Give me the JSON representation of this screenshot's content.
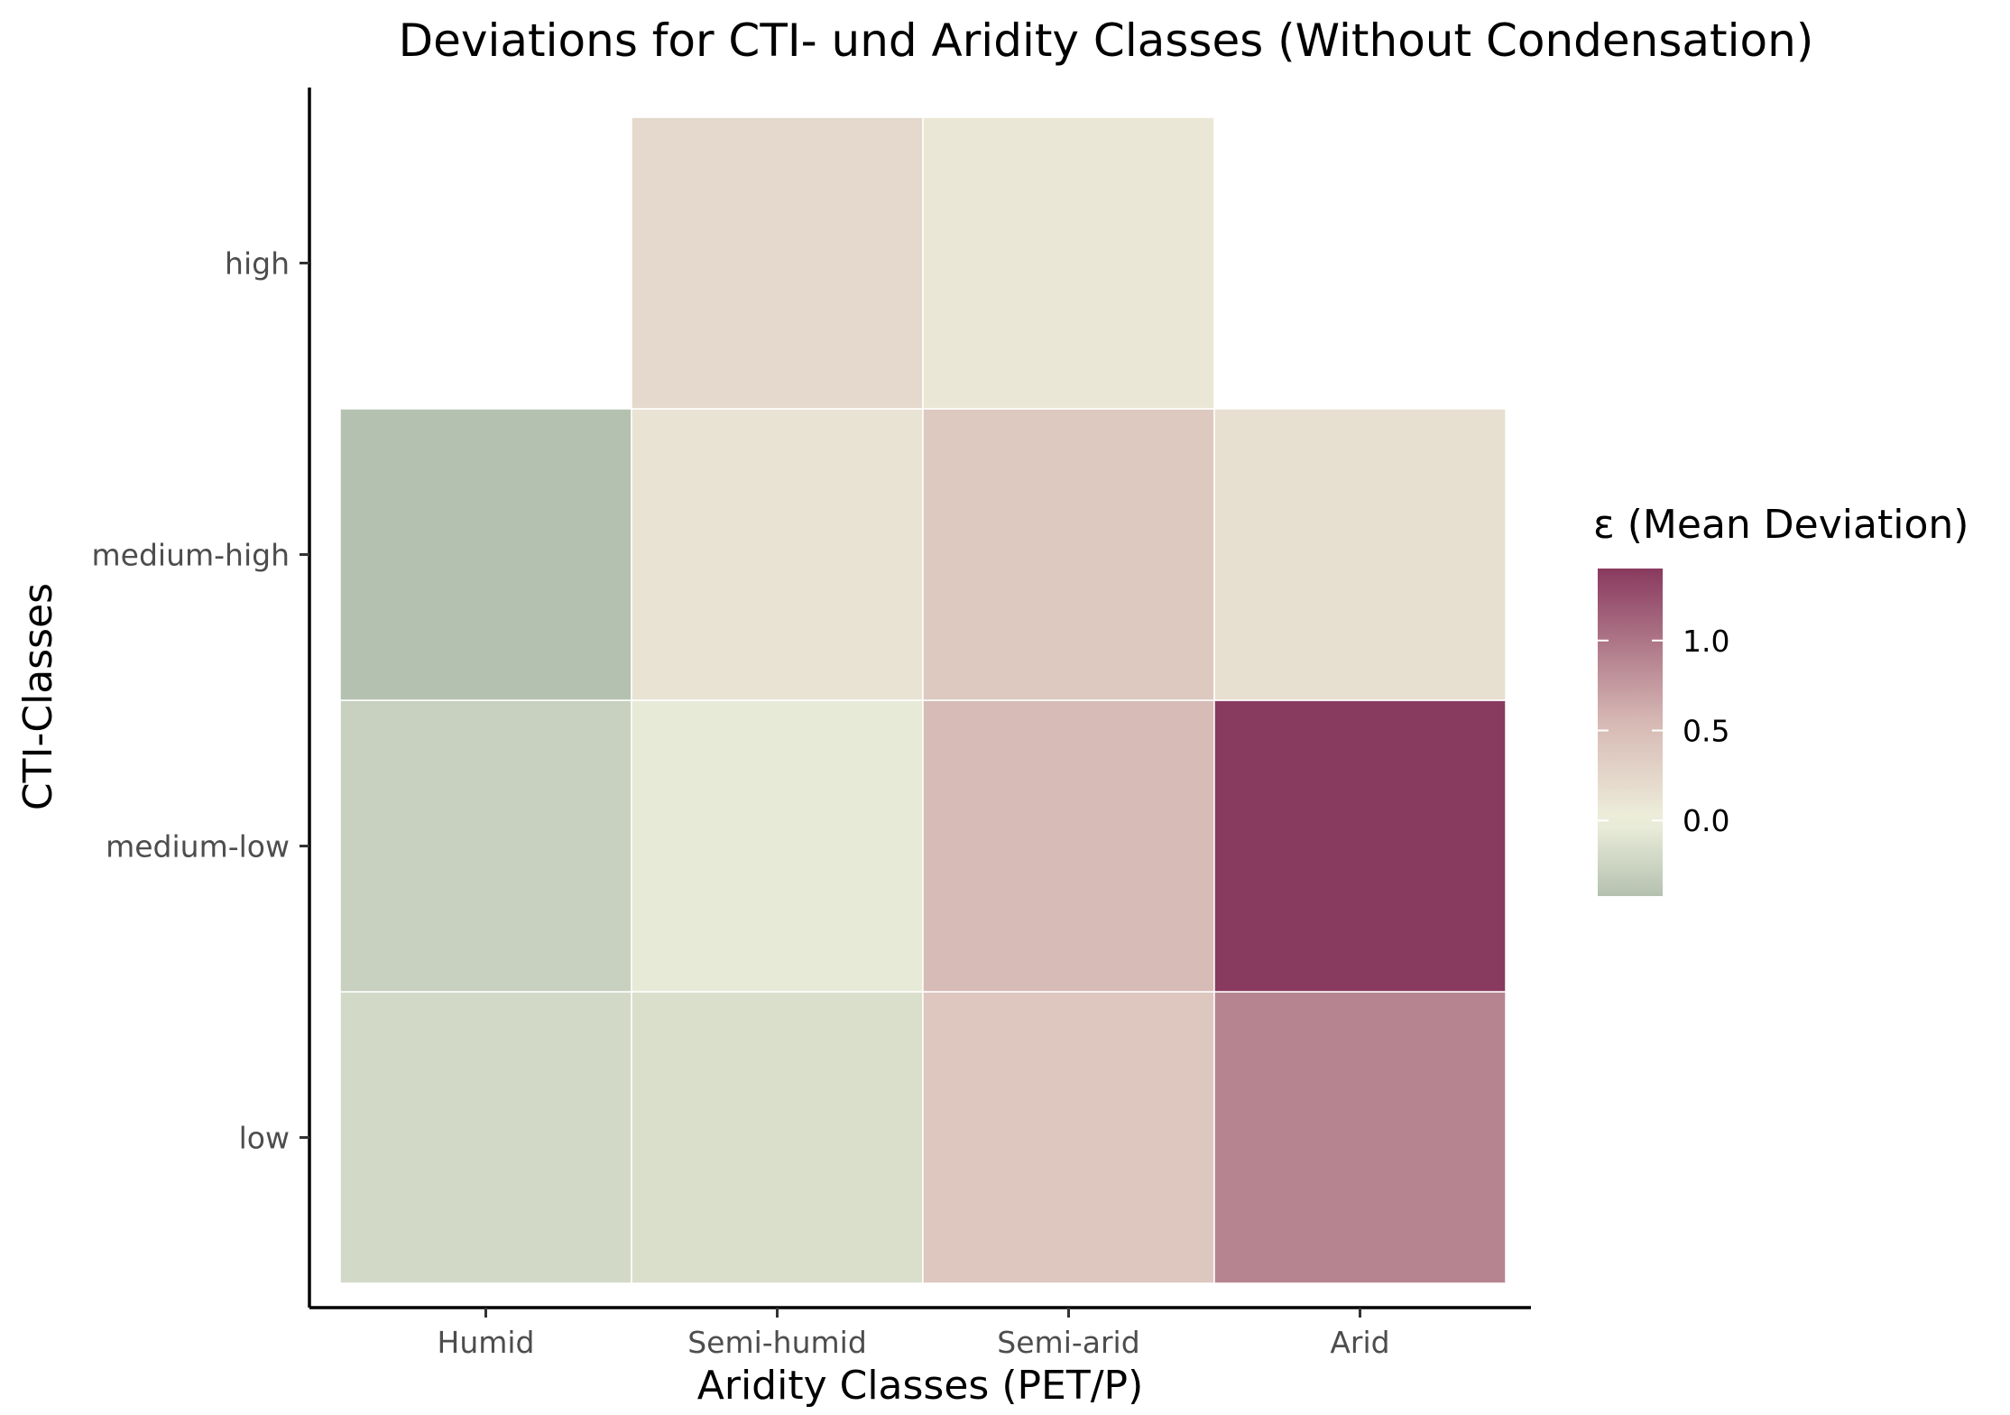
{
  "chart_data": {
    "type": "heatmap",
    "title": "Deviations for CTI- und Aridity Classes (Without Condensation)",
    "xlabel": "Aridity Classes (PET/P)",
    "ylabel": "CTI-Classes",
    "x_categories": [
      "Humid",
      "Semi-humid",
      "Semi-arid",
      "Arid"
    ],
    "y_categories": [
      "low",
      "medium-low",
      "medium-high",
      "high"
    ],
    "cells": [
      {
        "x": "Humid",
        "y": "low",
        "value": -0.2
      },
      {
        "x": "Semi-humid",
        "y": "low",
        "value": -0.15
      },
      {
        "x": "Semi-arid",
        "y": "low",
        "value": 0.4
      },
      {
        "x": "Arid",
        "y": "low",
        "value": 0.9
      },
      {
        "x": "Humid",
        "y": "medium-low",
        "value": -0.28
      },
      {
        "x": "Semi-humid",
        "y": "medium-low",
        "value": -0.05
      },
      {
        "x": "Semi-arid",
        "y": "medium-low",
        "value": 0.52
      },
      {
        "x": "Arid",
        "y": "medium-low",
        "value": 1.4
      },
      {
        "x": "Humid",
        "y": "medium-high",
        "value": -0.42
      },
      {
        "x": "Semi-humid",
        "y": "medium-high",
        "value": 0.12
      },
      {
        "x": "Semi-arid",
        "y": "medium-high",
        "value": 0.38
      },
      {
        "x": "Arid",
        "y": "medium-high",
        "value": 0.15
      },
      {
        "x": "Semi-humid",
        "y": "high",
        "value": 0.22
      },
      {
        "x": "Semi-arid",
        "y": "high",
        "value": 0.08
      }
    ],
    "legend": {
      "title": "ε (Mean Deviation)",
      "position": "right",
      "ticks": [
        {
          "value": 0.0,
          "label": "0.0"
        },
        {
          "value": 0.5,
          "label": "0.5"
        },
        {
          "value": 1.0,
          "label": "1.0"
        }
      ],
      "range": [
        -0.42,
        1.4
      ]
    },
    "color_scale": {
      "low_color": "#b5c1b0",
      "mid_color": "#eeefdc",
      "mid_value": 0.0,
      "pink_color": "#d6b8b4",
      "pink_value": 0.55,
      "high_color": "#893a5f"
    },
    "grid": false
  }
}
